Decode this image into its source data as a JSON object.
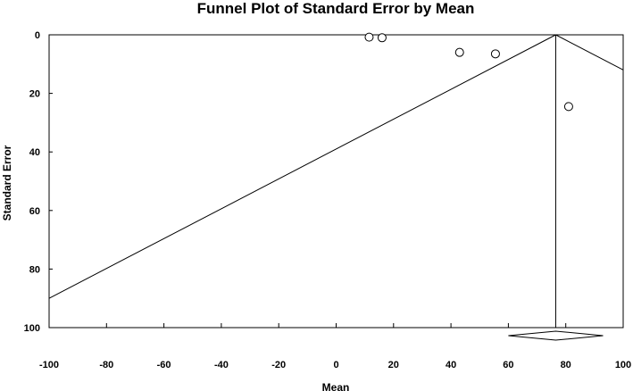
{
  "chart_data": {
    "type": "scatter",
    "title": "Funnel Plot of Standard Error by Mean",
    "xlabel": "Mean",
    "ylabel": "Standard Error",
    "xlim": [
      -100,
      100
    ],
    "ylim": [
      0,
      100
    ],
    "y_reversed": true,
    "xticks": [
      "-100",
      "-80",
      "-60",
      "-40",
      "-20",
      "0",
      "20",
      "40",
      "60",
      "80",
      "100"
    ],
    "xtick_values": [
      -100,
      -80,
      -60,
      -40,
      -20,
      0,
      20,
      40,
      60,
      80,
      100
    ],
    "yticks": [
      "0",
      "20",
      "40",
      "60",
      "80",
      "100"
    ],
    "ytick_values": [
      0,
      20,
      40,
      60,
      80,
      100
    ],
    "grid": false,
    "legend": "none",
    "points": [
      {
        "x": 11.5,
        "y": 0.8
      },
      {
        "x": 16,
        "y": 1
      },
      {
        "x": 43,
        "y": 6
      },
      {
        "x": 55.5,
        "y": 6.5
      },
      {
        "x": 81,
        "y": 24.5
      }
    ],
    "pooled_mean": 76.5,
    "funnel_left_line": {
      "x_at_top": 76.5,
      "y_top": 0,
      "x_at_edge": -100,
      "y_edge": 90
    },
    "funnel_right_line": {
      "x_at_top": 76.5,
      "y_top": 0,
      "x_at_edge": 100,
      "y_edge": 12
    },
    "summary_diamond": {
      "center": 76.5,
      "lower": 60,
      "upper": 93
    }
  }
}
